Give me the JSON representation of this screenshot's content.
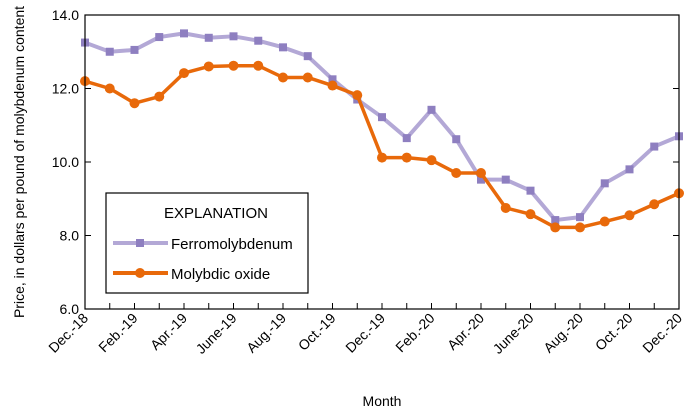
{
  "chart_data": {
    "type": "line",
    "xlabel": "Month",
    "ylabel": "Price, in dollars per pound of molybdenum content",
    "ylim": [
      6.0,
      14.0
    ],
    "yticks": [
      "6.0",
      "8.0",
      "10.0",
      "12.0",
      "14.0"
    ],
    "yticks_values": [
      6.0,
      8.0,
      10.0,
      12.0,
      14.0
    ],
    "categories": [
      "Dec.-18",
      "Jan.-19",
      "Feb.-19",
      "Mar.-19",
      "Apr.-19",
      "May-19",
      "June-19",
      "July-19",
      "Aug.-19",
      "Sept.-19",
      "Oct.-19",
      "Nov.-19",
      "Dec.-19",
      "Jan.-20",
      "Feb.-20",
      "Mar.-20",
      "Apr.-20",
      "May-20",
      "June-20",
      "July-20",
      "Aug.-20",
      "Sept.-20",
      "Oct.-20",
      "Nov.-20",
      "Dec.-20"
    ],
    "tick_labels": [
      {
        "index": 0,
        "label": "Dec.-18"
      },
      {
        "index": 2,
        "label": "Feb.-19"
      },
      {
        "index": 4,
        "label": "Apr.-19"
      },
      {
        "index": 6,
        "label": "June-19"
      },
      {
        "index": 8,
        "label": "Aug.-19"
      },
      {
        "index": 10,
        "label": "Oct.-19"
      },
      {
        "index": 12,
        "label": "Dec.-19"
      },
      {
        "index": 14,
        "label": "Feb.-20"
      },
      {
        "index": 16,
        "label": "Apr.-20"
      },
      {
        "index": 18,
        "label": "June-20"
      },
      {
        "index": 20,
        "label": "Aug.-20"
      },
      {
        "index": 22,
        "label": "Oct.-20"
      },
      {
        "index": 24,
        "label": "Dec.-20"
      }
    ],
    "legend": {
      "title": "EXPLANATION",
      "placement": "bottom-left"
    },
    "grid": false,
    "series": [
      {
        "name": "Ferromolybdenum",
        "color": "#b3a8d6",
        "marker": "square",
        "values": [
          13.25,
          13.0,
          13.05,
          13.4,
          13.5,
          13.38,
          13.42,
          13.3,
          13.12,
          12.88,
          12.25,
          11.7,
          11.22,
          10.65,
          11.42,
          10.62,
          9.52,
          9.52,
          9.22,
          8.42,
          8.5,
          9.42,
          9.8,
          10.42,
          10.7
        ]
      },
      {
        "name": "Molybdic oxide",
        "color": "#e8690a",
        "marker": "circle",
        "values": [
          12.2,
          12.0,
          11.6,
          11.78,
          12.42,
          12.6,
          12.62,
          12.62,
          12.3,
          12.3,
          12.08,
          11.82,
          10.12,
          10.12,
          10.05,
          9.7,
          9.7,
          8.75,
          8.58,
          8.22,
          8.22,
          8.38,
          8.55,
          8.85,
          9.15
        ]
      }
    ]
  }
}
